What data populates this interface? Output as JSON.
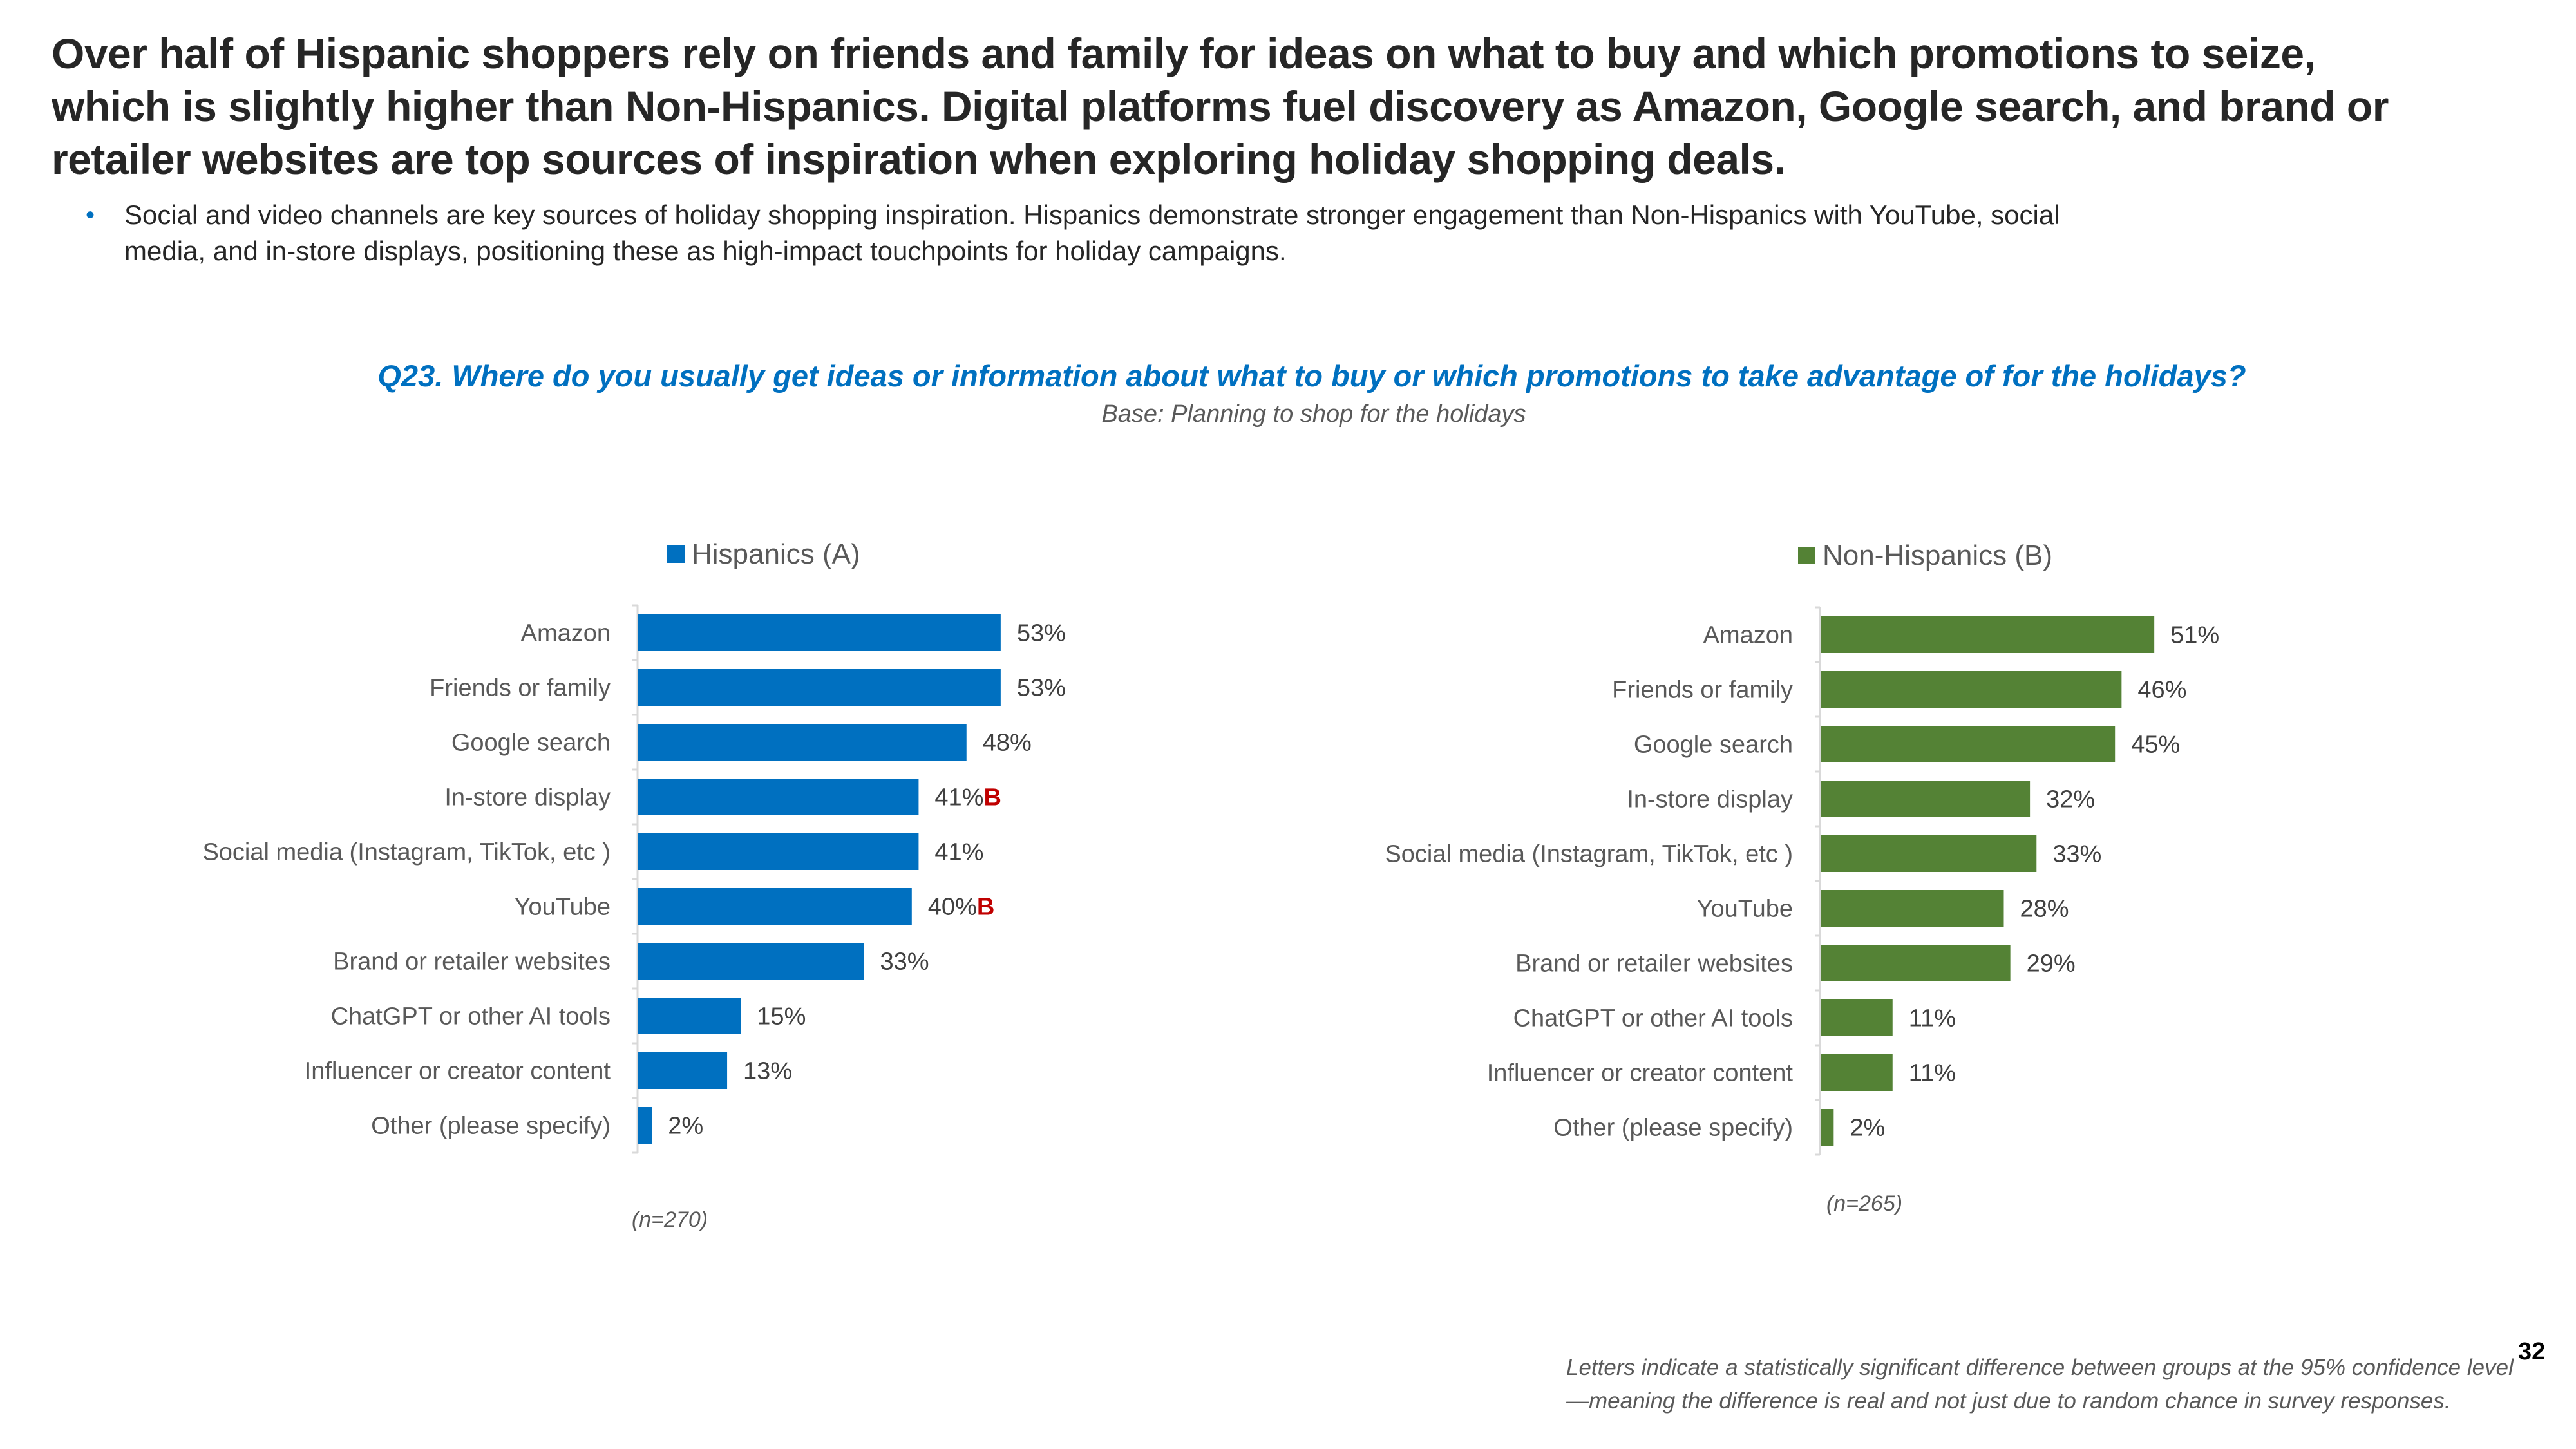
{
  "headline": "Over half of Hispanic shoppers rely on friends and family for ideas on what to buy and which promotions to seize, which is slightly higher than Non-Hispanics. Digital platforms fuel discovery as Amazon, Google search, and brand or retailer websites are top sources of inspiration when exploring holiday shopping deals.",
  "bullets": [
    "Social and video channels are key sources of holiday shopping inspiration. Hispanics demonstrate stronger engagement than Non-Hispanics with YouTube, social media, and in-store displays, positioning these as high-impact touchpoints for holiday campaigns."
  ],
  "question": "Q23. Where do you usually get ideas or information about what to buy or which promotions to take advantage of for the holidays?",
  "base": "Base: Planning to shop for the holidays",
  "footnote": "Letters indicate a statistically significant difference between groups at the 95% confidence level—meaning the difference is real and not just due to random chance in survey responses.",
  "page_number": "32",
  "chart_data": [
    {
      "type": "bar",
      "orientation": "horizontal",
      "title": "",
      "legend": "Hispanics (A)",
      "legend_position": "top",
      "color": "#0070C0",
      "n_label": "(n=270)",
      "categories": [
        "Amazon",
        "Friends or family",
        "Google search",
        "In-store display",
        "Social media (Instagram, TikTok, etc )",
        "YouTube",
        "Brand or retailer websites",
        "ChatGPT or other AI tools",
        "Influencer or creator content",
        "Other (please specify)"
      ],
      "values": [
        53,
        53,
        48,
        41,
        41,
        40,
        33,
        15,
        13,
        2
      ],
      "value_labels": [
        "53%",
        "53%",
        "48%",
        "41%",
        "41%",
        "40%",
        "33%",
        "15%",
        "13%",
        "2%"
      ],
      "significance": [
        "",
        "",
        "",
        "B",
        "",
        "B",
        "",
        "",
        "",
        ""
      ],
      "unit": "%",
      "xlim": [
        0,
        100
      ],
      "grid": false
    },
    {
      "type": "bar",
      "orientation": "horizontal",
      "title": "",
      "legend": "Non-Hispanics (B)",
      "legend_position": "top",
      "color": "#548235",
      "n_label": "(n=265)",
      "categories": [
        "Amazon",
        "Friends or family",
        "Google search",
        "In-store display",
        "Social media (Instagram, TikTok, etc )",
        "YouTube",
        "Brand or retailer websites",
        "ChatGPT or other AI tools",
        "Influencer or creator content",
        "Other (please specify)"
      ],
      "values": [
        51,
        46,
        45,
        32,
        33,
        28,
        29,
        11,
        11,
        2
      ],
      "value_labels": [
        "51%",
        "46%",
        "45%",
        "32%",
        "33%",
        "28%",
        "29%",
        "11%",
        "11%",
        "2%"
      ],
      "significance": [
        "",
        "",
        "",
        "",
        "",
        "",
        "",
        "",
        "",
        ""
      ],
      "unit": "%",
      "xlim": [
        0,
        100
      ],
      "grid": false
    }
  ]
}
